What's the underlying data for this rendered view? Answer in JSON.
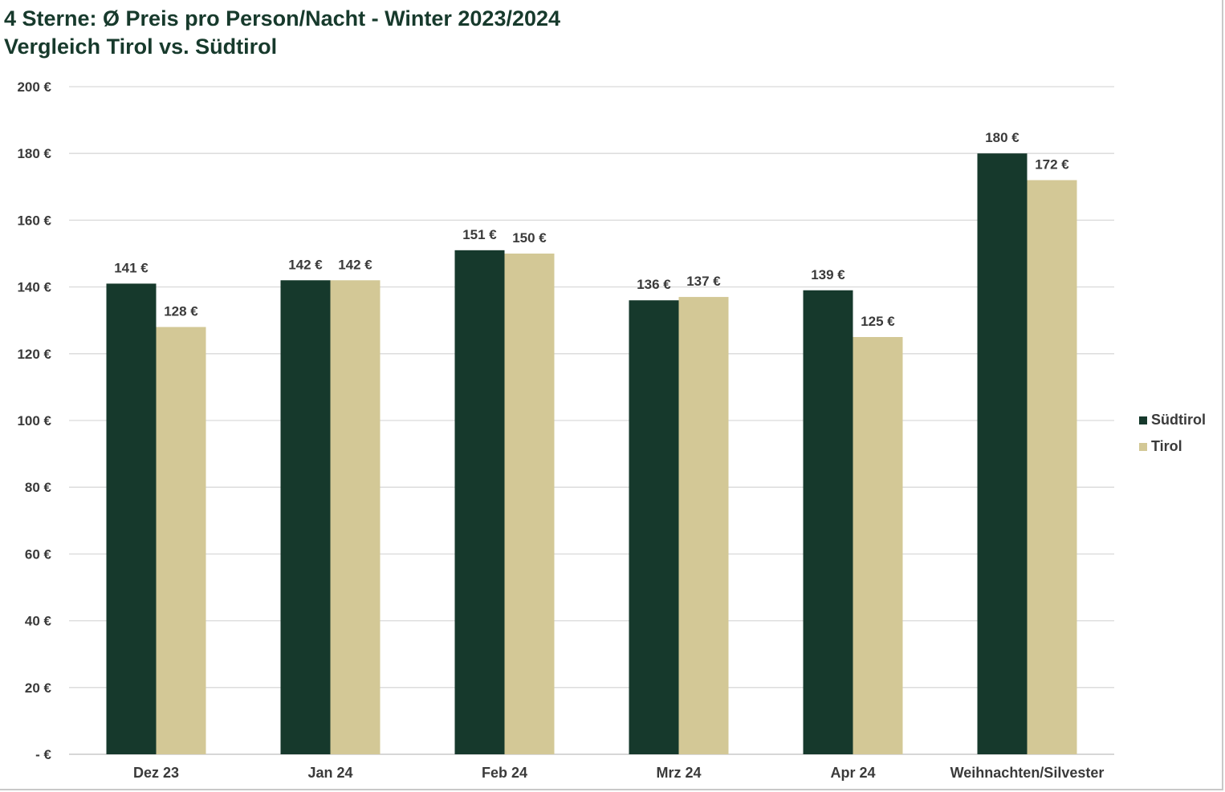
{
  "title_line1": "4 Sterne: Ø Preis pro Person/Nacht - Winter 2023/2024",
  "title_line2": "Vergleich Tirol vs. Südtirol",
  "chart_data": {
    "type": "bar",
    "categories": [
      "Dez 23",
      "Jan 24",
      "Feb 24",
      "Mrz 24",
      "Apr 24",
      "Weihnachten/Silvester"
    ],
    "series": [
      {
        "name": "Südtirol",
        "color": "#16392c",
        "values": [
          141,
          142,
          151,
          136,
          139,
          180
        ],
        "labels": [
          "141 €",
          "142 €",
          "151 €",
          "136 €",
          "139 €",
          "180 €"
        ]
      },
      {
        "name": "Tirol",
        "color": "#d3c896",
        "values": [
          128,
          142,
          150,
          137,
          125,
          172
        ],
        "labels": [
          "128 €",
          "142 €",
          "150 €",
          "137 €",
          "125 €",
          "172 €"
        ]
      }
    ],
    "ylim": [
      0,
      200
    ],
    "yticks": [
      0,
      20,
      40,
      60,
      80,
      100,
      120,
      140,
      160,
      180,
      200
    ],
    "ytick_labels": [
      "-  €",
      "20 €",
      "40 €",
      "60 €",
      "80 €",
      "100 €",
      "120 €",
      "140 €",
      "160 €",
      "180 €",
      "200 €"
    ],
    "grid": true,
    "gridline_color": "#d9d9d9",
    "legend_position": "right"
  }
}
